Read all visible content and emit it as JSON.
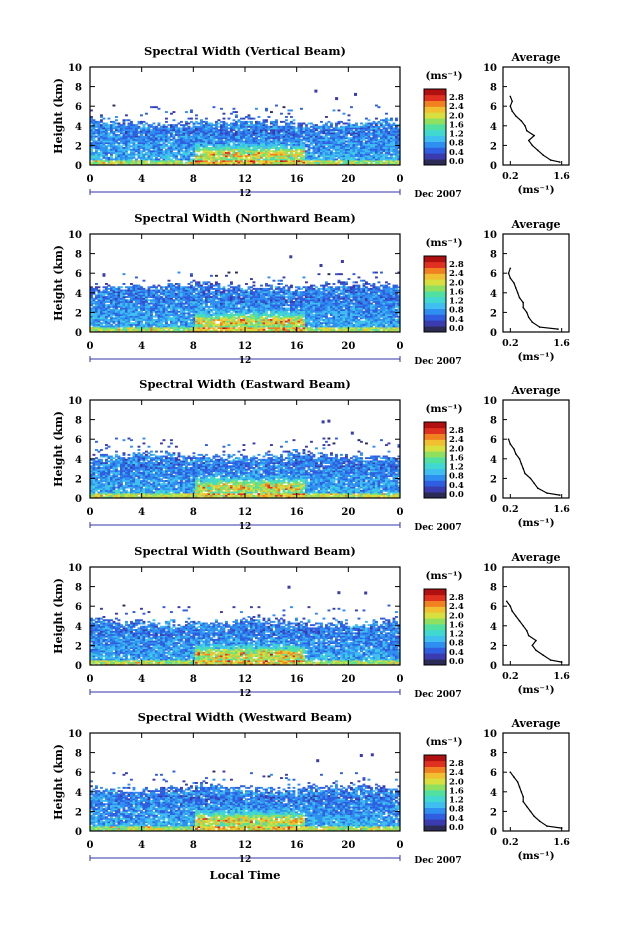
{
  "colors": {
    "colormap": [
      "#2b2b55",
      "#3b3bb0",
      "#2f5fe0",
      "#2f8ff0",
      "#3fbff0",
      "#40d8d0",
      "#50e0a0",
      "#90e060",
      "#d8e040",
      "#f0c030",
      "#f08020",
      "#e03020",
      "#b01010"
    ],
    "axis": "#000000",
    "time_axis": "#3333aa"
  },
  "colorbar": {
    "unit_label": "(ms⁻¹)",
    "tick_labels": [
      "2.8",
      "2.4",
      "2.0",
      "1.6",
      "1.2",
      "0.8",
      "0.4",
      "0.0"
    ]
  },
  "shared": {
    "x_label": "Local Time",
    "date_label": "Dec 2007",
    "day_mark": "12",
    "average_title": "Average",
    "average_xlabel": "(ms⁻¹)"
  },
  "chart_data": [
    {
      "type": "heatmap",
      "title": "Spectral Width (Vertical Beam)",
      "xlabel": "",
      "ylabel": "Height (km)",
      "x_ticks": [
        "0",
        "4",
        "8",
        "12",
        "16",
        "20",
        "0"
      ],
      "y_ticks": [
        "0",
        "2",
        "4",
        "6",
        "8",
        "10"
      ],
      "xlim": [
        0,
        24
      ],
      "ylim": [
        0,
        10
      ],
      "clim": [
        0.0,
        3.0
      ],
      "profile": {
        "title": "Average",
        "x_ticks": [
          "0.2",
          "1.6"
        ],
        "y_ticks": [
          "0",
          "2",
          "4",
          "6",
          "8",
          "10"
        ],
        "xlim": [
          0,
          1.8
        ],
        "ylim": [
          0,
          10
        ],
        "heights": [
          0.3,
          0.5,
          1.0,
          1.5,
          2.0,
          2.5,
          3.0,
          3.5,
          4.0,
          4.5,
          5.0,
          5.5,
          6.0,
          6.5,
          7.0
        ],
        "values": [
          1.55,
          1.3,
          1.1,
          0.95,
          0.8,
          0.7,
          0.85,
          0.65,
          0.6,
          0.5,
          0.35,
          0.25,
          0.2,
          0.25,
          0.2
        ]
      }
    },
    {
      "type": "heatmap",
      "title": "Spectral Width (Northward Beam)",
      "xlabel": "",
      "ylabel": "Height (km)",
      "x_ticks": [
        "0",
        "4",
        "8",
        "12",
        "16",
        "20",
        "0"
      ],
      "y_ticks": [
        "0",
        "2",
        "4",
        "6",
        "8",
        "10"
      ],
      "xlim": [
        0,
        24
      ],
      "ylim": [
        0,
        10
      ],
      "clim": [
        0.0,
        3.0
      ],
      "profile": {
        "title": "Average",
        "x_ticks": [
          "0.2",
          "1.6"
        ],
        "y_ticks": [
          "0",
          "2",
          "4",
          "6",
          "8",
          "10"
        ],
        "xlim": [
          0,
          1.8
        ],
        "ylim": [
          0,
          10
        ],
        "heights": [
          0.3,
          0.5,
          1.0,
          1.5,
          2.0,
          2.5,
          3.0,
          3.5,
          4.0,
          4.5,
          5.0,
          5.5,
          6.0,
          6.5
        ],
        "values": [
          1.5,
          1.0,
          0.8,
          0.7,
          0.65,
          0.55,
          0.55,
          0.45,
          0.4,
          0.35,
          0.3,
          0.2,
          0.15,
          0.2
        ]
      }
    },
    {
      "type": "heatmap",
      "title": "Spectral Width (Eastward Beam)",
      "xlabel": "",
      "ylabel": "Height (km)",
      "x_ticks": [
        "0",
        "4",
        "8",
        "12",
        "16",
        "20",
        "0"
      ],
      "y_ticks": [
        "0",
        "2",
        "4",
        "6",
        "8",
        "10"
      ],
      "xlim": [
        0,
        24
      ],
      "ylim": [
        0,
        10
      ],
      "clim": [
        0.0,
        3.0
      ],
      "profile": {
        "title": "Average",
        "x_ticks": [
          "0.2",
          "1.6"
        ],
        "y_ticks": [
          "0",
          "2",
          "4",
          "6",
          "8",
          "10"
        ],
        "xlim": [
          0,
          1.8
        ],
        "ylim": [
          0,
          10
        ],
        "heights": [
          0.3,
          0.5,
          1.0,
          1.5,
          2.0,
          2.5,
          3.0,
          3.5,
          4.0,
          4.5,
          5.0,
          5.5,
          6.0
        ],
        "values": [
          1.55,
          1.2,
          0.95,
          0.85,
          0.75,
          0.6,
          0.55,
          0.5,
          0.45,
          0.35,
          0.3,
          0.2,
          0.15
        ]
      }
    },
    {
      "type": "heatmap",
      "title": "Spectral Width (Southward Beam)",
      "xlabel": "",
      "ylabel": "Height (km)",
      "x_ticks": [
        "0",
        "4",
        "8",
        "12",
        "16",
        "20",
        "0"
      ],
      "y_ticks": [
        "0",
        "2",
        "4",
        "6",
        "8",
        "10"
      ],
      "xlim": [
        0,
        24
      ],
      "ylim": [
        0,
        10
      ],
      "clim": [
        0.0,
        3.0
      ],
      "profile": {
        "title": "Average",
        "x_ticks": [
          "0.2",
          "1.6"
        ],
        "y_ticks": [
          "0",
          "2",
          "4",
          "6",
          "8",
          "10"
        ],
        "xlim": [
          0,
          1.8
        ],
        "ylim": [
          0,
          10
        ],
        "heights": [
          0.3,
          0.5,
          1.0,
          1.5,
          2.0,
          2.5,
          3.0,
          3.5,
          4.0,
          4.5,
          5.0,
          5.5,
          6.0,
          6.5
        ],
        "values": [
          1.6,
          1.3,
          1.1,
          0.9,
          0.8,
          0.9,
          0.7,
          0.65,
          0.55,
          0.45,
          0.35,
          0.25,
          0.2,
          0.1
        ]
      }
    },
    {
      "type": "heatmap",
      "title": "Spectral Width (Westward Beam)",
      "xlabel": "Local Time",
      "ylabel": "Height (km)",
      "x_ticks": [
        "0",
        "4",
        "8",
        "12",
        "16",
        "20",
        "0"
      ],
      "y_ticks": [
        "0",
        "2",
        "4",
        "6",
        "8",
        "10"
      ],
      "xlim": [
        0,
        24
      ],
      "ylim": [
        0,
        10
      ],
      "clim": [
        0.0,
        3.0
      ],
      "profile": {
        "title": "Average",
        "x_ticks": [
          "0.2",
          "1.6"
        ],
        "y_ticks": [
          "0",
          "2",
          "4",
          "6",
          "8",
          "10"
        ],
        "xlim": [
          0,
          1.8
        ],
        "ylim": [
          0,
          10
        ],
        "heights": [
          0.3,
          0.5,
          1.0,
          1.5,
          2.0,
          2.5,
          3.0,
          3.5,
          4.0,
          4.5,
          5.0,
          5.5,
          6.0
        ],
        "values": [
          1.6,
          1.2,
          1.0,
          0.85,
          0.75,
          0.65,
          0.55,
          0.55,
          0.5,
          0.45,
          0.4,
          0.3,
          0.2
        ]
      }
    }
  ]
}
